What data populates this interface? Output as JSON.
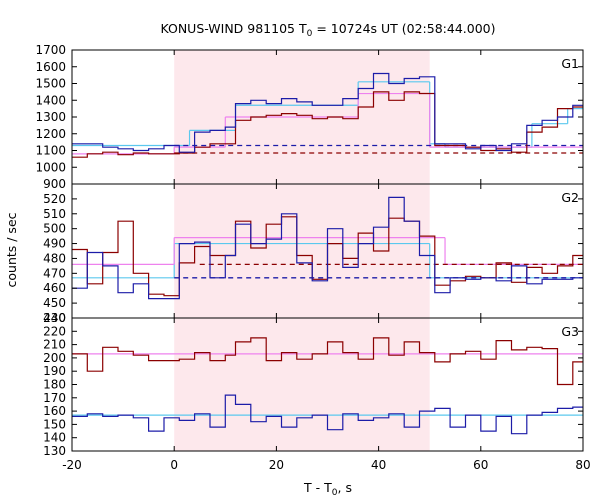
{
  "chart_data": {
    "type": "line",
    "title_main": "KONUS-WIND 981105 T",
    "title_sub": "0",
    "title_rest": " = 10724s UT (02:58:44.000)",
    "xlabel_main": "T - T",
    "xlabel_sub": "0",
    "xlabel_rest": ", s",
    "ylabel": "counts / sec",
    "xlim": [
      -20,
      80
    ],
    "x_ticks": [
      -20,
      0,
      20,
      40,
      60,
      80
    ],
    "shaded_interval": [
      0,
      50
    ],
    "colors": {
      "shade": "#fde8ec",
      "data_a": "#8b0000",
      "data_b": "#1c1ca8",
      "fit_a": "#ee82ee",
      "fit_b": "#5bc8ee",
      "bg_a": "#8b0000",
      "bg_b": "#1c1ca8"
    },
    "x_bins": [
      -20,
      -17,
      -14,
      -11,
      -8,
      -5,
      -2,
      1,
      4,
      7,
      10,
      12,
      15,
      18,
      21,
      24,
      27,
      30,
      33,
      36,
      39,
      42,
      45,
      48,
      51,
      54,
      57,
      60,
      63,
      66,
      69,
      72,
      75,
      78,
      81
    ],
    "panels": [
      {
        "label": "G1",
        "ylim": [
          900,
          1700
        ],
        "y_ticks": [
          900,
          1000,
          1100,
          1200,
          1300,
          1400,
          1500,
          1600,
          1700
        ],
        "series": [
          {
            "role": "data_a",
            "values": [
              1060,
              1080,
              1090,
              1075,
              1085,
              1080,
              1080,
              1085,
              1120,
              1140,
              1140,
              1280,
              1300,
              1310,
              1320,
              1310,
              1290,
              1300,
              1290,
              1360,
              1450,
              1400,
              1450,
              1440,
              1130,
              1130,
              1120,
              1100,
              1110,
              1090,
              1210,
              1240,
              1350,
              1360
            ]
          },
          {
            "role": "data_b",
            "values": [
              1140,
              1140,
              1120,
              1110,
              1100,
              1110,
              1130,
              1090,
              1210,
              1220,
              1240,
              1380,
              1400,
              1380,
              1410,
              1390,
              1370,
              1370,
              1410,
              1470,
              1560,
              1500,
              1530,
              1540,
              1140,
              1140,
              1110,
              1130,
              1100,
              1140,
              1250,
              1280,
              1300,
              1370
            ]
          }
        ],
        "fits": [
          {
            "role": "fit_b",
            "segments": [
              {
                "x": [
                  -20,
                  3
                ],
                "y": 1130
              },
              {
                "x": [
                  3,
                  12
                ],
                "y": 1220
              },
              {
                "x": [
                  12,
                  36
                ],
                "y": 1370
              },
              {
                "x": [
                  36,
                  50
                ],
                "y": 1510
              },
              {
                "x": [
                  50,
                  53
                ],
                "y": 1140
              },
              {
                "x": [
                  53,
                  70
                ],
                "y": 1120
              },
              {
                "x": [
                  70,
                  77
                ],
                "y": 1260
              },
              {
                "x": [
                  77,
                  80
                ],
                "y": 1350
              }
            ]
          },
          {
            "role": "fit_a",
            "segments": [
              {
                "x": [
                  -20,
                  0
                ],
                "y": 1080
              },
              {
                "x": [
                  0,
                  10
                ],
                "y": 1120
              },
              {
                "x": [
                  10,
                  36
                ],
                "y": 1300
              },
              {
                "x": [
                  36,
                  50
                ],
                "y": 1440
              },
              {
                "x": [
                  50,
                  80
                ],
                "y": 1120
              }
            ]
          }
        ],
        "backgrounds": [
          {
            "role": "bg_a",
            "y": 1085,
            "from": 0
          },
          {
            "role": "bg_b",
            "y": 1130,
            "from": 0
          }
        ]
      },
      {
        "label": "G2",
        "ylim": [
          440,
          530
        ],
        "y_ticks": [
          440,
          450,
          460,
          470,
          480,
          490,
          500,
          510,
          520
        ],
        "series": [
          {
            "role": "data_a",
            "values": [
              486,
              463,
              484,
              505,
              470,
              456,
              455,
              477,
              488,
              482,
              482,
              505,
              487,
              503,
              508,
              482,
              466,
              490,
              480,
              497,
              485,
              507,
              505,
              495,
              462,
              465,
              468,
              467,
              477,
              464,
              474,
              470,
              475,
              482
            ]
          },
          {
            "role": "data_b",
            "values": [
              460,
              484,
              475,
              457,
              463,
              453,
              453,
              490,
              491,
              467,
              482,
              503,
              490,
              493,
              510,
              477,
              465,
              500,
              474,
              490,
              501,
              521,
              505,
              482,
              457,
              467,
              466,
              467,
              465,
              475,
              463,
              466,
              466,
              467
            ]
          }
        ],
        "fits": [
          {
            "role": "fit_b",
            "segments": [
              {
                "x": [
                  -20,
                  0
                ],
                "y": 467
              },
              {
                "x": [
                  0,
                  50
                ],
                "y": 490
              },
              {
                "x": [
                  50,
                  80
                ],
                "y": 467
              }
            ]
          },
          {
            "role": "fit_a",
            "segments": [
              {
                "x": [
                  -20,
                  0
                ],
                "y": 476
              },
              {
                "x": [
                  0,
                  53
                ],
                "y": 494
              },
              {
                "x": [
                  53,
                  80
                ],
                "y": 476
              }
            ]
          }
        ],
        "backgrounds": [
          {
            "role": "bg_a",
            "y": 476,
            "from": 5
          },
          {
            "role": "bg_b",
            "y": 467,
            "from": 0
          }
        ]
      },
      {
        "label": "G3",
        "ylim": [
          130,
          230
        ],
        "y_ticks": [
          130,
          140,
          150,
          160,
          170,
          180,
          190,
          200,
          210,
          220,
          230
        ],
        "series": [
          {
            "role": "data_a",
            "values": [
              203,
              190,
              208,
              205,
              202,
              198,
              198,
              199,
              204,
              198,
              202,
              212,
              215,
              198,
              204,
              199,
              203,
              212,
              204,
              199,
              215,
              202,
              212,
              204,
              197,
              203,
              205,
              199,
              213,
              206,
              208,
              207,
              180,
              197
            ]
          },
          {
            "role": "data_b",
            "values": [
              156,
              158,
              156,
              157,
              155,
              145,
              155,
              153,
              158,
              148,
              172,
              165,
              152,
              156,
              148,
              155,
              157,
              146,
              158,
              153,
              155,
              158,
              148,
              160,
              162,
              148,
              157,
              145,
              156,
              143,
              157,
              159,
              162,
              163
            ]
          }
        ],
        "fits": [
          {
            "role": "fit_a",
            "segments": [
              {
                "x": [
                  -20,
                  80
                ],
                "y": 203
              }
            ]
          },
          {
            "role": "fit_b",
            "segments": [
              {
                "x": [
                  -20,
                  80
                ],
                "y": 157
              }
            ]
          }
        ],
        "backgrounds": []
      }
    ]
  }
}
